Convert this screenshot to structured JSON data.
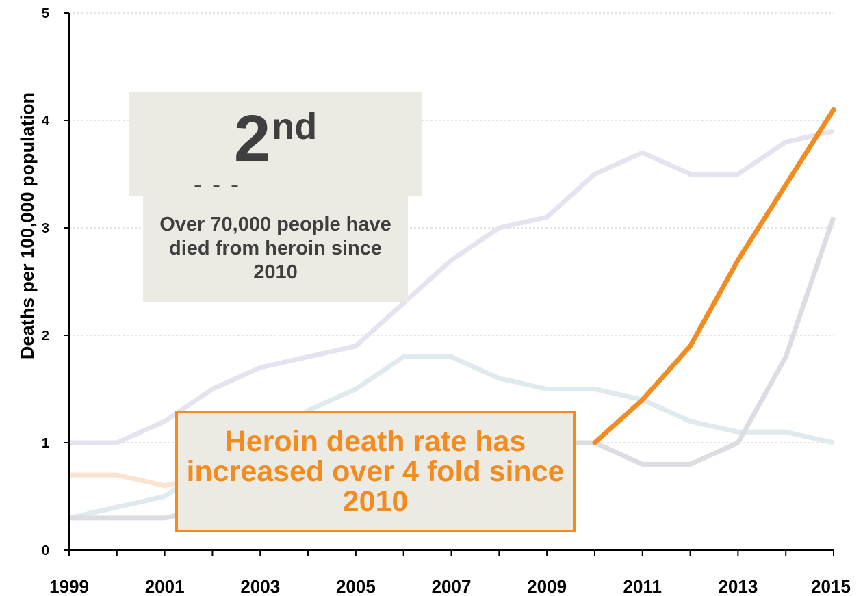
{
  "chart_data": {
    "type": "line",
    "title": "",
    "xlabel": "",
    "ylabel": "Deaths per 100,000 population",
    "x": [
      1999,
      2000,
      2001,
      2002,
      2003,
      2004,
      2005,
      2006,
      2007,
      2008,
      2009,
      2010,
      2011,
      2012,
      2013,
      2014,
      2015
    ],
    "x_tick_labels": [
      "1999",
      "2001",
      "2003",
      "2005",
      "2007",
      "2009",
      "2011",
      "2013",
      "2015"
    ],
    "y_tick_labels": [
      "0",
      "1",
      "2",
      "3",
      "4",
      "5"
    ],
    "ylim": [
      0,
      5
    ],
    "xlim": [
      1999,
      2015
    ],
    "grid": "horizontal dashed",
    "series": [
      {
        "color": "#e6e2f0",
        "values": [
          1.0,
          1.0,
          1.2,
          1.5,
          1.7,
          1.8,
          1.9,
          2.3,
          2.7,
          3.0,
          3.1,
          3.5,
          3.7,
          3.5,
          3.5,
          3.8,
          3.9
        ]
      },
      {
        "color": "#dfeaef",
        "values": [
          0.3,
          0.4,
          0.5,
          0.8,
          1.0,
          1.3,
          1.5,
          1.8,
          1.8,
          1.6,
          1.5,
          1.5,
          1.4,
          1.2,
          1.1,
          1.1,
          1.0
        ]
      },
      {
        "color": "#dcdde3",
        "values": [
          0.3,
          0.3,
          0.3,
          0.4,
          0.5,
          0.6,
          0.7,
          0.8,
          0.9,
          0.95,
          1.0,
          1.0,
          0.8,
          0.8,
          1.0,
          1.8,
          3.1
        ]
      },
      {
        "color": "#fbe3cf",
        "values": [
          0.7,
          0.7,
          0.6,
          0.7,
          0.7,
          0.8,
          0.8,
          0.9,
          0.9,
          0.95,
          1.0,
          null,
          null,
          null,
          null,
          null,
          null
        ]
      },
      {
        "color": "#f28c20",
        "highlight": true,
        "values": [
          null,
          null,
          null,
          null,
          null,
          null,
          null,
          null,
          null,
          null,
          null,
          1.0,
          1.4,
          1.9,
          2.7,
          3.4,
          4.1
        ]
      }
    ],
    "annotations": {
      "rank": "2",
      "rank_suffix": "nd",
      "rank_dashes": "– – –",
      "stat": "Over 70,000 people have died from heroin since 2010",
      "callout": "Heroin death rate has increased over 4 fold since 2010"
    }
  }
}
